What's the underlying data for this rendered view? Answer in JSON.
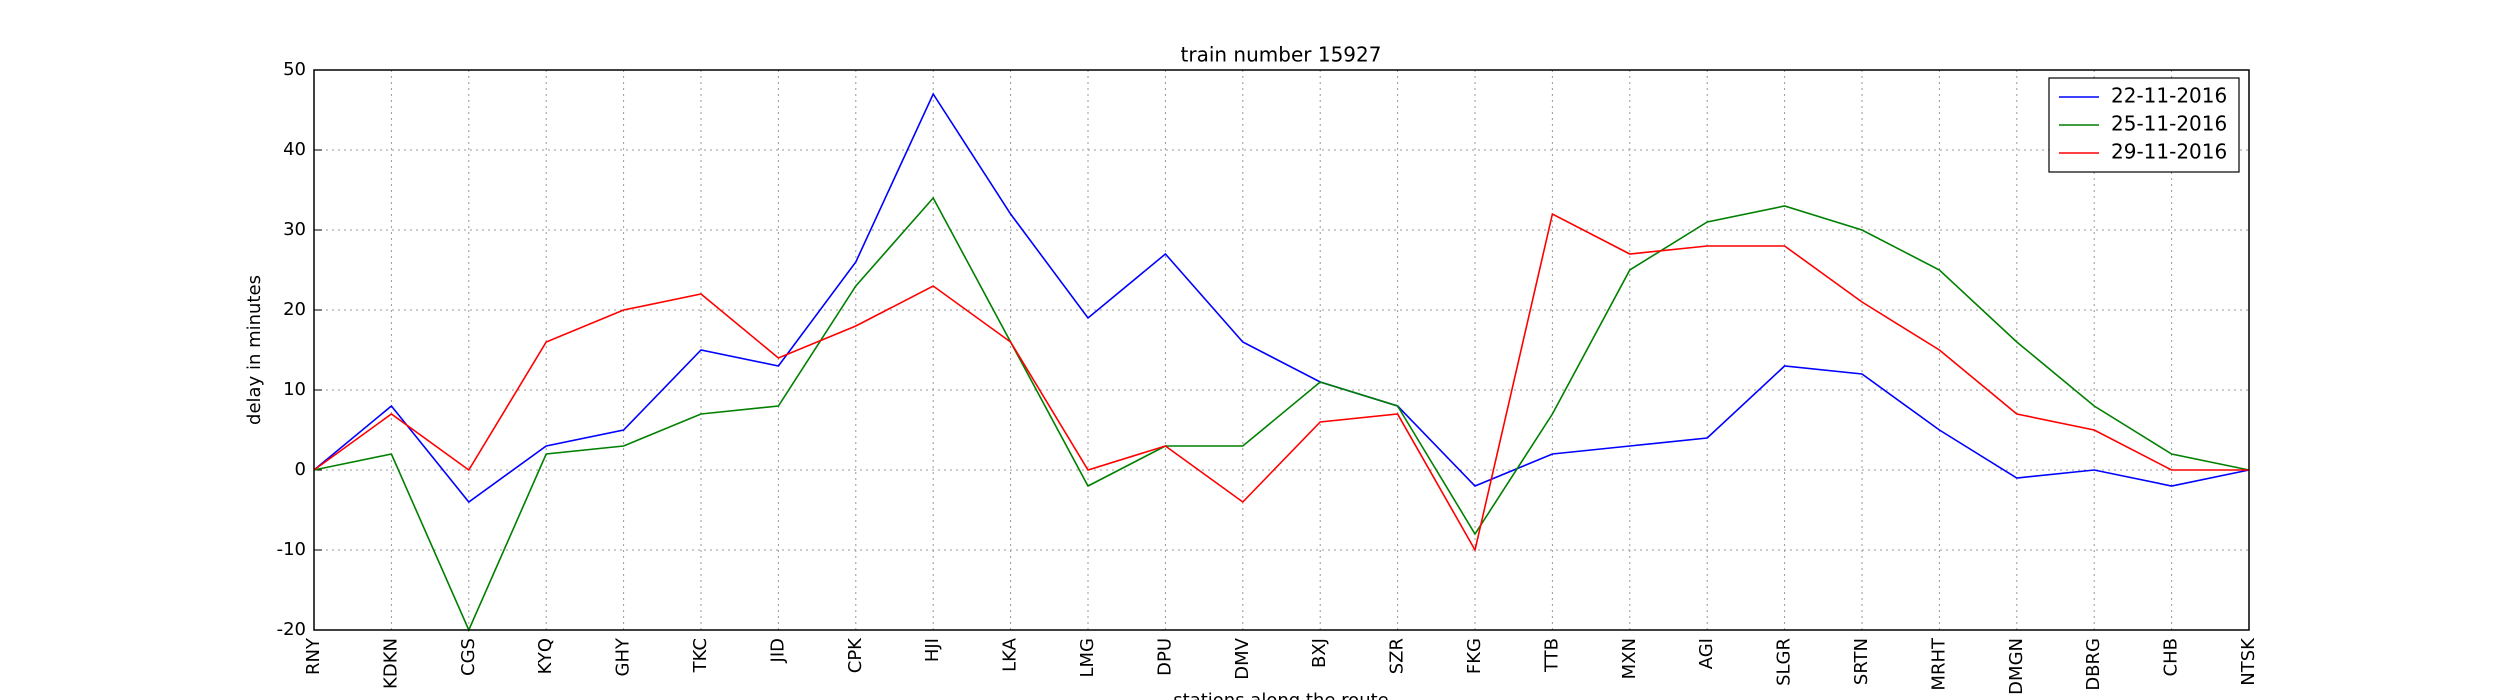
{
  "chart_data": {
    "type": "line",
    "title": "train number 15927",
    "xlabel": "stations along the route",
    "ylabel": "delay in minutes",
    "categories": [
      "RNY",
      "KDKN",
      "CGS",
      "KYQ",
      "GHY",
      "TKC",
      "JID",
      "CPK",
      "HJI",
      "LKA",
      "LMG",
      "DPU",
      "DMV",
      "BXJ",
      "SZR",
      "FKG",
      "TTB",
      "MXN",
      "AGI",
      "SLGR",
      "SRTN",
      "MRHT",
      "DMGN",
      "DBRG",
      "CHB",
      "NTSK"
    ],
    "series": [
      {
        "name": "22-11-2016",
        "color": "#0000ff",
        "values": [
          0,
          8,
          -4,
          3,
          5,
          15,
          13,
          26,
          47,
          32,
          19,
          27,
          16,
          11,
          8,
          -2,
          2,
          3,
          4,
          13,
          12,
          5,
          -1,
          0,
          -2,
          0
        ]
      },
      {
        "name": "25-11-2016",
        "color": "#008000",
        "values": [
          0,
          2,
          -20,
          2,
          3,
          7,
          8,
          23,
          34,
          16,
          -2,
          3,
          3,
          11,
          8,
          -8,
          7,
          25,
          31,
          33,
          30,
          25,
          16,
          8,
          2,
          0
        ]
      },
      {
        "name": "29-11-2016",
        "color": "#ff0000",
        "values": [
          0,
          7,
          0,
          16,
          20,
          22,
          14,
          18,
          23,
          16,
          0,
          3,
          -4,
          6,
          7,
          -10,
          32,
          27,
          28,
          28,
          21,
          15,
          7,
          5,
          0,
          0
        ]
      }
    ],
    "ylim": [
      -20,
      50
    ],
    "yticks": [
      -20,
      -10,
      0,
      10,
      20,
      30,
      40,
      50
    ],
    "grid": true,
    "legend": "upper right"
  }
}
